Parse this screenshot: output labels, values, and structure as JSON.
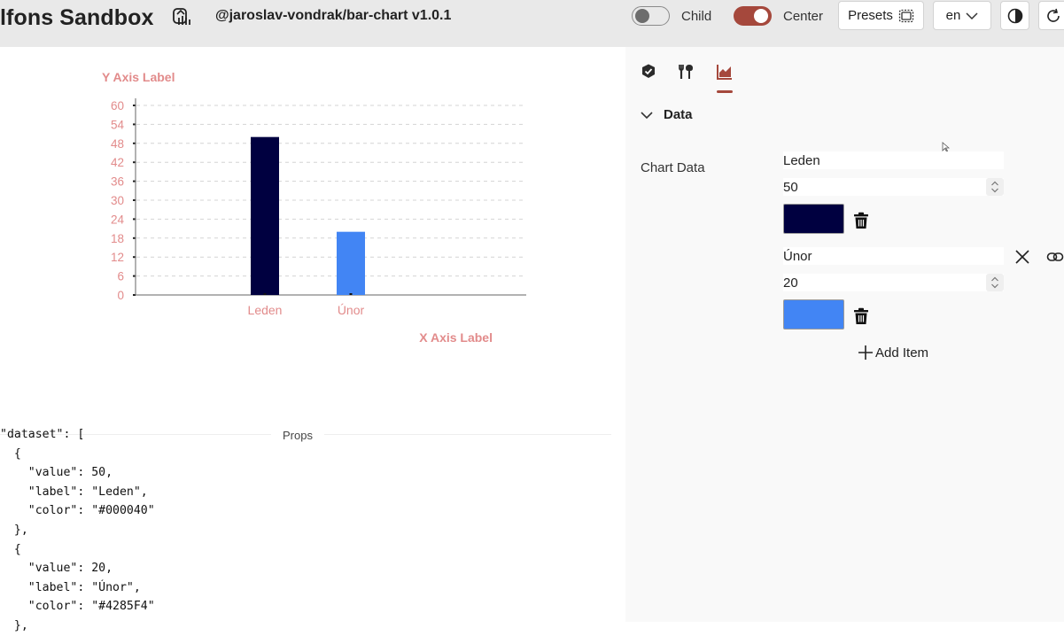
{
  "header": {
    "app_title": "lfons Sandbox",
    "package": "@jaroslav-vondrak/bar-chart v1.0.1",
    "child_label": "Child",
    "child_on": false,
    "center_label": "Center",
    "center_on": true,
    "presets_label": "Presets",
    "language": "en",
    "accent": "#a5483c"
  },
  "props": {
    "label": "Props",
    "code": "\"dataset\": [\n  {\n    \"value\": 50,\n    \"label\": \"Leden\",\n    \"color\": \"#000040\"\n  },\n  {\n    \"value\": 20,\n    \"label\": \"Únor\",\n    \"color\": \"#4285F4\"\n  },"
  },
  "panel": {
    "tabs": [
      "check-badge-icon",
      "tools-icon",
      "chart-icon"
    ],
    "active_tab": 2,
    "section_title": "Data",
    "field_label": "Chart Data",
    "items": [
      {
        "label": "Leden",
        "value": "50",
        "color": "#000040"
      },
      {
        "label": "Únor",
        "value": "20",
        "color": "#4285F4"
      }
    ],
    "add_label": "Add Item"
  },
  "chart_data": {
    "type": "bar",
    "categories": [
      "Leden",
      "Únor"
    ],
    "values": [
      50,
      20
    ],
    "colors": [
      "#000040",
      "#4285F4"
    ],
    "xlabel": "X Axis Label",
    "ylabel": "Y Axis Label",
    "ylim": [
      0,
      60
    ],
    "yticks": [
      0,
      6,
      12,
      18,
      24,
      30,
      36,
      42,
      48,
      54,
      60
    ],
    "grid": true,
    "label_color": "#e28b8b"
  }
}
